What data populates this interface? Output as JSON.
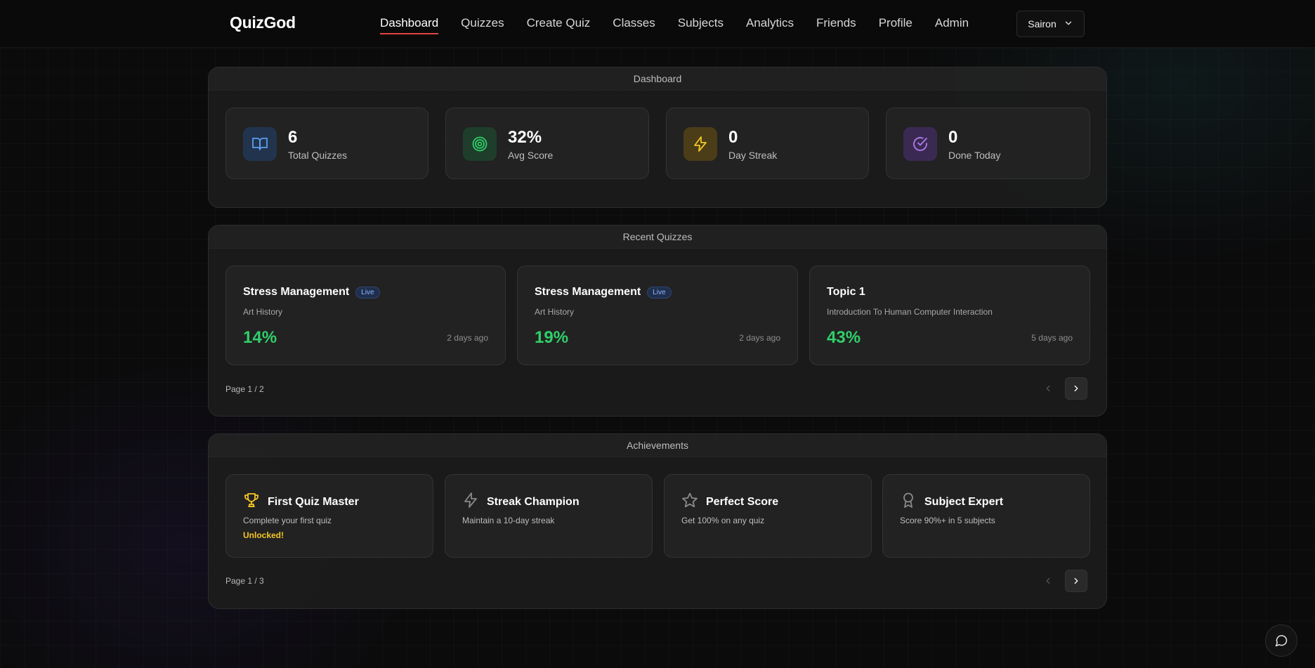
{
  "brand": {
    "logo": "QuizGod"
  },
  "nav": {
    "items": [
      {
        "label": "Dashboard",
        "active": true
      },
      {
        "label": "Quizzes"
      },
      {
        "label": "Create Quiz"
      },
      {
        "label": "Classes"
      },
      {
        "label": "Subjects"
      },
      {
        "label": "Analytics"
      },
      {
        "label": "Friends"
      },
      {
        "label": "Profile"
      },
      {
        "label": "Admin"
      }
    ],
    "accent": "#e0443e"
  },
  "user": {
    "name": "Sairon"
  },
  "dashboard": {
    "title": "Dashboard",
    "stats": [
      {
        "value": "6",
        "label": "Total Quizzes",
        "icon": "book-open-icon",
        "color": "#5aa0f0"
      },
      {
        "value": "32%",
        "label": "Avg Score",
        "icon": "target-icon",
        "color": "#2fd06a"
      },
      {
        "value": "0",
        "label": "Day Streak",
        "icon": "lightning-icon",
        "color": "#f4c623"
      },
      {
        "value": "0",
        "label": "Done Today",
        "icon": "check-circle-icon",
        "color": "#b37cf0"
      }
    ]
  },
  "recent": {
    "title": "Recent Quizzes",
    "quizzes": [
      {
        "title": "Stress Management",
        "badge": "Live",
        "subject": "Art History",
        "score": "14%",
        "time": "2 days ago"
      },
      {
        "title": "Stress Management",
        "badge": "Live",
        "subject": "Art History",
        "score": "19%",
        "time": "2 days ago"
      },
      {
        "title": "Topic 1",
        "subject": "Introduction To Human Computer Interaction",
        "score": "43%",
        "time": "5 days ago"
      }
    ],
    "pager": "Page 1 / 2"
  },
  "achievements": {
    "title": "Achievements",
    "items": [
      {
        "title": "First Quiz Master",
        "desc": "Complete your first quiz",
        "status": "Unlocked!",
        "icon": "trophy-icon",
        "unlocked": true
      },
      {
        "title": "Streak Champion",
        "desc": "Maintain a 10-day streak",
        "icon": "lightning-icon"
      },
      {
        "title": "Perfect Score",
        "desc": "Get 100% on any quiz",
        "icon": "star-icon"
      },
      {
        "title": "Subject Expert",
        "desc": "Score 90%+ in 5 subjects",
        "icon": "award-icon"
      }
    ],
    "pager": "Page 1 / 3"
  }
}
